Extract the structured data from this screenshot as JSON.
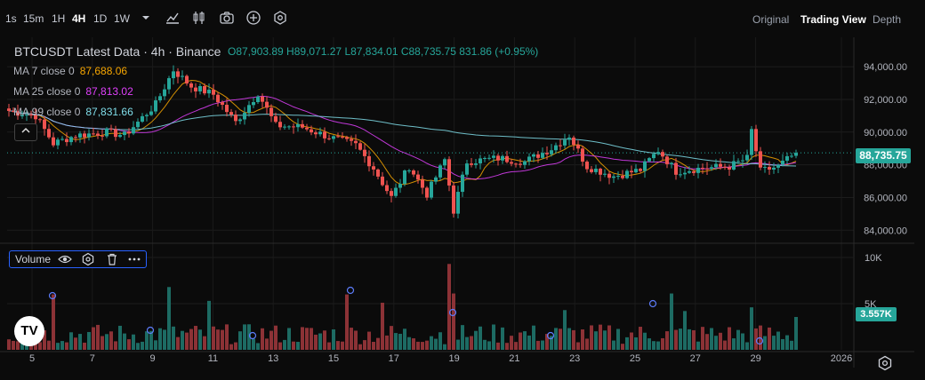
{
  "toolbar": {
    "timeframes": [
      "1s",
      "15m",
      "1H",
      "4H",
      "1D",
      "1W"
    ],
    "active_timeframe": "4H",
    "views": [
      "Original",
      "Trading View",
      "Depth"
    ],
    "active_view": "Trading View",
    "icons": [
      "chevron-down-icon",
      "indicators-icon",
      "candle-style-icon",
      "camera-icon",
      "add-icon",
      "settings-icon"
    ]
  },
  "legend": {
    "title": "BTCUSDT Latest Data · 4h · Binance",
    "ohlc": "O87,903.89 H89,071.27 L87,834.01 C88,735.75 831.86 (+0.95%)",
    "ma": [
      {
        "label": "MA 7 close 0",
        "value": "87,688.06",
        "color": "#f7a600"
      },
      {
        "label": "MA 25 close 0",
        "value": "87,813.02",
        "color": "#e040fb"
      },
      {
        "label": "MA 99 close 0",
        "value": "87,831.66",
        "color": "#80deea"
      }
    ]
  },
  "volume_legend": {
    "label": "Volume"
  },
  "last_price_label": "88,735.75",
  "last_volume_label": "3.557K",
  "colors": {
    "up": "#26a69a",
    "down": "#ef5350",
    "ma7": "#f7a600",
    "ma25": "#e040fb",
    "ma99": "#80deea"
  },
  "chart_data": {
    "type": "candlestick",
    "title": "BTCUSDT Latest Data · 4h · Binance",
    "price_ticks": [
      "94,000.00",
      "92,000.00",
      "90,000.00",
      "88,000.00",
      "86,000.00",
      "84,000.00"
    ],
    "volume_ticks": [
      "10K",
      "5K"
    ],
    "x_ticks": [
      "5",
      "7",
      "9",
      "11",
      "13",
      "15",
      "17",
      "19",
      "21",
      "23",
      "25",
      "27",
      "29",
      "2026"
    ],
    "ylim": [
      83200,
      95800
    ],
    "volume_ylim": [
      0,
      10000
    ],
    "last_close": 88735.75,
    "last_volume": 3557,
    "anchors": [
      {
        "t": 0,
        "p": 91300
      },
      {
        "t": 6,
        "p": 91000
      },
      {
        "t": 10,
        "p": 89300
      },
      {
        "t": 15,
        "p": 89800
      },
      {
        "t": 22,
        "p": 90000
      },
      {
        "t": 26,
        "p": 89800
      },
      {
        "t": 33,
        "p": 91700
      },
      {
        "t": 37,
        "p": 93800
      },
      {
        "t": 41,
        "p": 92800
      },
      {
        "t": 46,
        "p": 92300
      },
      {
        "t": 51,
        "p": 90600
      },
      {
        "t": 56,
        "p": 92400
      },
      {
        "t": 60,
        "p": 90400
      },
      {
        "t": 66,
        "p": 90300
      },
      {
        "t": 72,
        "p": 89700
      },
      {
        "t": 78,
        "p": 89200
      },
      {
        "t": 82,
        "p": 87800
      },
      {
        "t": 86,
        "p": 86000
      },
      {
        "t": 90,
        "p": 87900
      },
      {
        "t": 94,
        "p": 86200
      },
      {
        "t": 98,
        "p": 88300
      },
      {
        "t": 100,
        "p": 85200
      },
      {
        "t": 103,
        "p": 88200
      },
      {
        "t": 110,
        "p": 88400
      },
      {
        "t": 116,
        "p": 88200
      },
      {
        "t": 122,
        "p": 89000
      },
      {
        "t": 126,
        "p": 89800
      },
      {
        "t": 130,
        "p": 87900
      },
      {
        "t": 136,
        "p": 87300
      },
      {
        "t": 142,
        "p": 87700
      },
      {
        "t": 146,
        "p": 88900
      },
      {
        "t": 150,
        "p": 87600
      },
      {
        "t": 156,
        "p": 87800
      },
      {
        "t": 162,
        "p": 87900
      },
      {
        "t": 166,
        "p": 88400
      },
      {
        "t": 167,
        "p": 90100
      },
      {
        "t": 169,
        "p": 87600
      },
      {
        "t": 173,
        "p": 87900
      },
      {
        "t": 177,
        "p": 88735.75
      }
    ],
    "volume_spikes": [
      {
        "t": 10,
        "v": 6000
      },
      {
        "t": 36,
        "v": 6800
      },
      {
        "t": 45,
        "v": 5300
      },
      {
        "t": 76,
        "v": 6000
      },
      {
        "t": 84,
        "v": 5100
      },
      {
        "t": 99,
        "v": 9300
      },
      {
        "t": 100,
        "v": 6100
      },
      {
        "t": 125,
        "v": 4300
      },
      {
        "t": 149,
        "v": 6100
      },
      {
        "t": 152,
        "v": 4200
      },
      {
        "t": 167,
        "v": 4600
      }
    ],
    "total_candles": 178
  }
}
